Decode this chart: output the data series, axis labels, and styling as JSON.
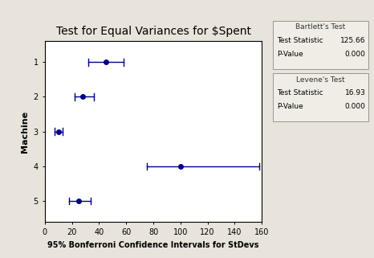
{
  "title": "Test for Equal Variances for $Spent",
  "xlabel": "95% Bonferroni Confidence Intervals for StDevs",
  "ylabel": "Machine",
  "background_color": "#e8e4dc",
  "plot_bg_color": "#ffffff",
  "machines": [
    1,
    2,
    3,
    4,
    5
  ],
  "centers": [
    45,
    28,
    10,
    100,
    25
  ],
  "ci_low": [
    32,
    22,
    7,
    75,
    18
  ],
  "ci_high": [
    58,
    36,
    13,
    158,
    34
  ],
  "point_color": "#00008B",
  "line_color": "#00008B",
  "xlim": [
    0,
    160
  ],
  "xticks": [
    0,
    20,
    40,
    60,
    80,
    100,
    120,
    140,
    160
  ],
  "ylim": [
    0.4,
    5.6
  ],
  "bartlett_label": "Bartlett's Test",
  "bartlett_statistic": "125.66",
  "bartlett_pvalue": "0.000",
  "levene_label": "Levene's Test",
  "levene_statistic": "16.93",
  "levene_pvalue": "0.000",
  "title_fontsize": 10,
  "axis_fontsize": 7,
  "stats_fontsize": 6.5
}
